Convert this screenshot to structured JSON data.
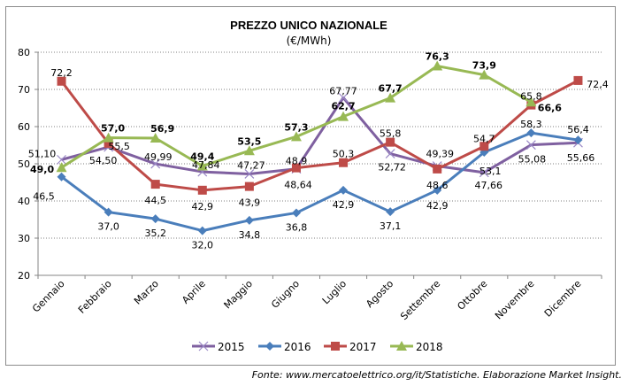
{
  "chart_data": {
    "type": "line",
    "title": "PREZZO UNICO NAZIONALE",
    "subtitle": "(€/MWh)",
    "xlabel": "",
    "ylabel": "",
    "ylim": [
      20,
      80
    ],
    "yticks": [
      20,
      30,
      40,
      50,
      60,
      70,
      80
    ],
    "ytick_labels": [
      "20",
      "30",
      "40",
      "50",
      "60",
      "70",
      "80"
    ],
    "grid": true,
    "legend_position": "bottom",
    "categories": [
      "Gennaio",
      "Febbraio",
      "Marzo",
      "Aprile",
      "Maggio",
      "Giugno",
      "Luglio",
      "Agosto",
      "Settembre",
      "Ottobre",
      "Novembre",
      "Dicembre"
    ],
    "series": [
      {
        "name": "2015",
        "color": "#7f60a0",
        "marker": "x",
        "bold_labels": false,
        "values": [
          51.1,
          54.5,
          49.99,
          47.84,
          47.27,
          48.64,
          67.77,
          52.72,
          49.39,
          47.66,
          55.08,
          55.66
        ],
        "labels": [
          "51,10",
          "54,50",
          "49,99",
          "47,84",
          "47,27",
          "48,64",
          "67,77",
          "52,72",
          "49,39",
          "47,66",
          "55,08",
          "55,66"
        ]
      },
      {
        "name": "2016",
        "color": "#4a7ebb",
        "marker": "diamond",
        "bold_labels": false,
        "values": [
          46.5,
          37.0,
          35.2,
          32.0,
          34.8,
          36.8,
          42.9,
          37.1,
          42.9,
          53.1,
          58.3,
          56.4
        ],
        "labels": [
          "46,5",
          "37,0",
          "35,2",
          "32,0",
          "34,8",
          "36,8",
          "42,9",
          "37,1",
          "42,9",
          "53,1",
          "58,3",
          "56,4"
        ]
      },
      {
        "name": "2017",
        "color": "#be4b48",
        "marker": "square",
        "bold_labels": false,
        "values": [
          72.2,
          55.5,
          44.5,
          42.9,
          43.9,
          48.9,
          50.3,
          55.8,
          48.6,
          54.7,
          65.8,
          72.4
        ],
        "labels": [
          "72,2",
          "55,5",
          "44,5",
          "42,9",
          "43,9",
          "48,9",
          "50,3",
          "55,8",
          "48,6",
          "54,7",
          "65,8",
          "72,4"
        ]
      },
      {
        "name": "2018",
        "color": "#98b954",
        "marker": "triangle",
        "bold_labels": true,
        "values": [
          49.0,
          57.0,
          56.9,
          49.4,
          53.5,
          57.3,
          62.7,
          67.7,
          76.3,
          73.9,
          66.6,
          null
        ],
        "labels": [
          "49,0",
          "57,0",
          "56,9",
          "49,4",
          "53,5",
          "57,3",
          "62,7",
          "67,7",
          "76,3",
          "73,9",
          "66,6",
          null
        ]
      }
    ]
  },
  "source": "Fonte: www.mercatoelettrico.org/it/Statistiche. Elaborazione Market Insight."
}
